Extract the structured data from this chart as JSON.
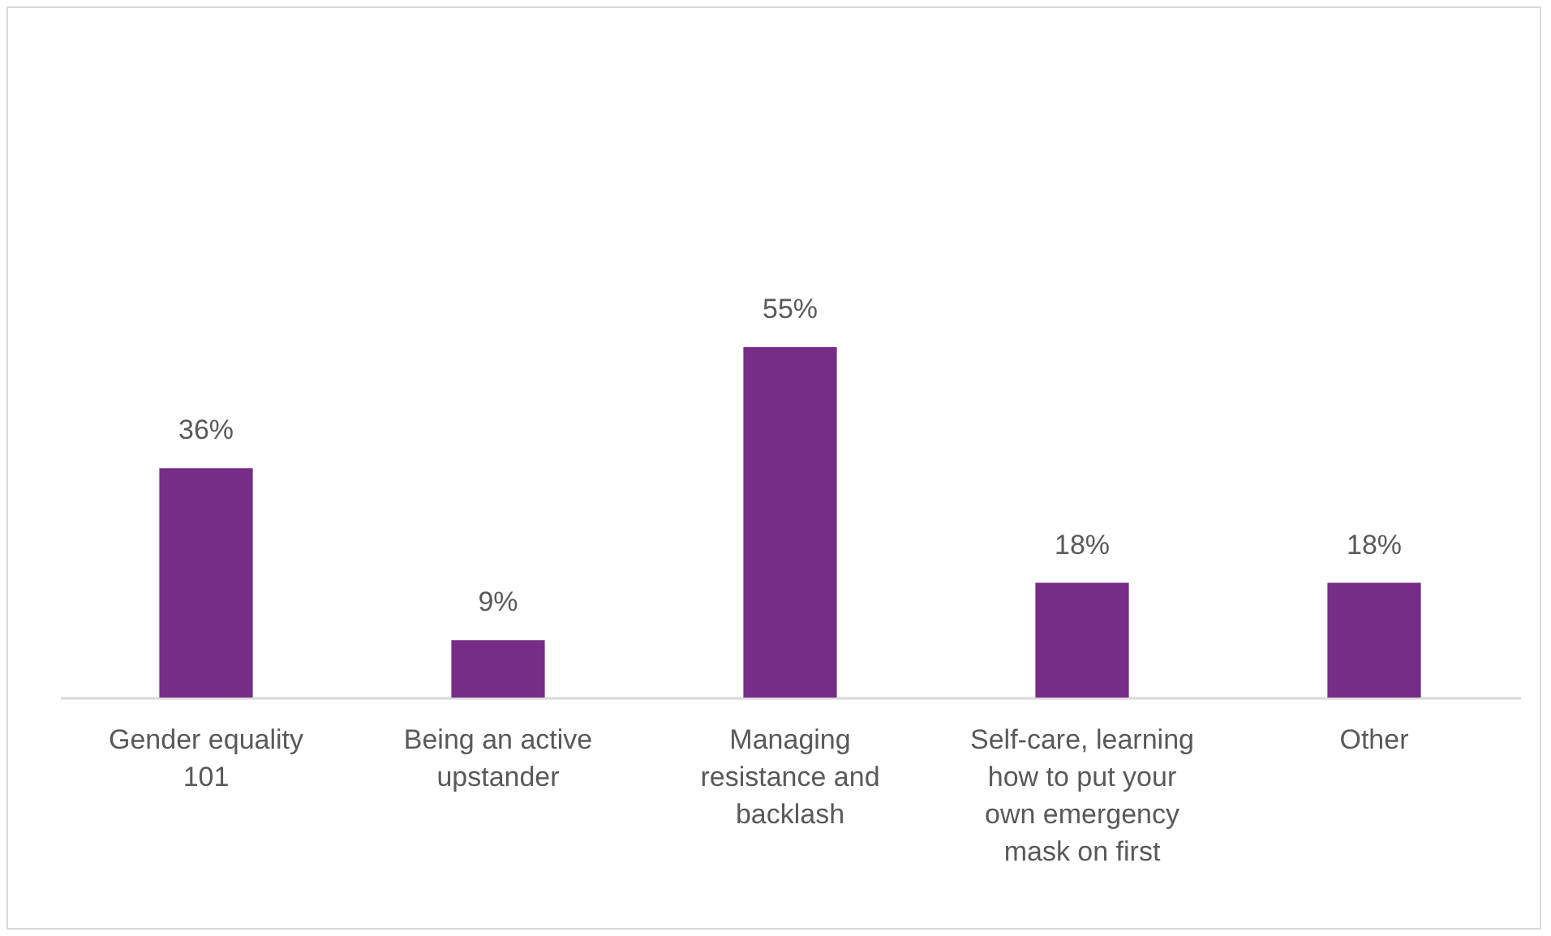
{
  "chart_data": {
    "type": "bar",
    "categories": [
      "Gender equality 101",
      "Being an active upstander",
      "Managing resistance and backlash",
      "Self-care, learning how to put your own emergency mask on first",
      "Other"
    ],
    "values": [
      36,
      9,
      55,
      18,
      18
    ],
    "value_labels": [
      "36%",
      "9%",
      "55%",
      "18%",
      "18%"
    ],
    "color": "#772c87"
  }
}
